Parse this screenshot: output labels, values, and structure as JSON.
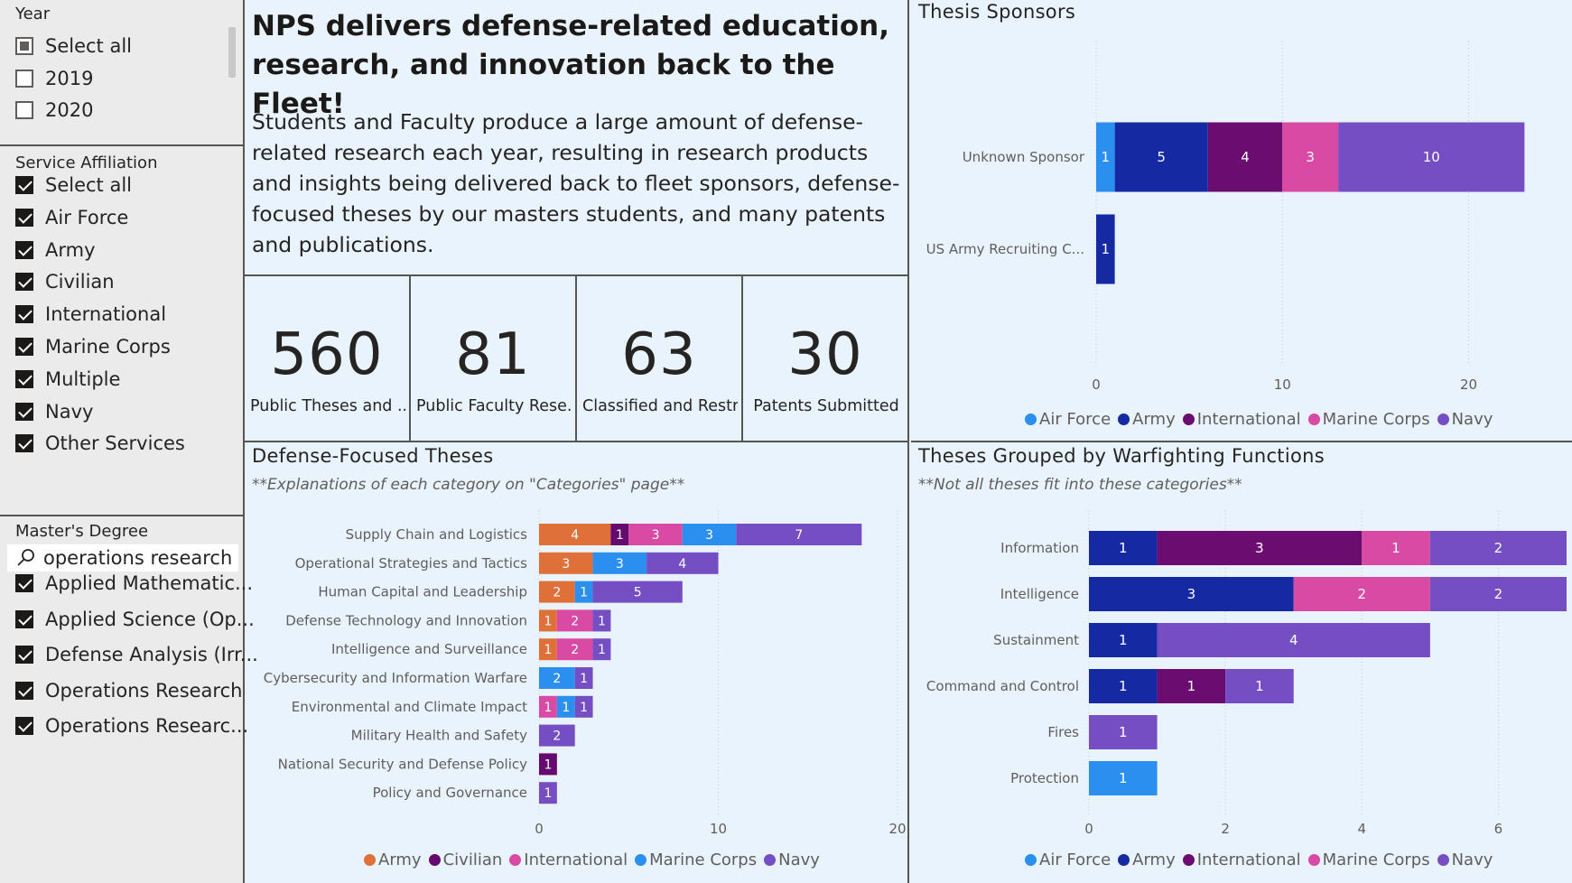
{
  "sidebar": {
    "year": {
      "title": "Year",
      "items": [
        {
          "label": "Select all",
          "state": "partial"
        },
        {
          "label": "2019",
          "state": "unchecked"
        },
        {
          "label": "2020",
          "state": "unchecked"
        }
      ]
    },
    "service": {
      "title": "Service Affiliation",
      "items": [
        {
          "label": "Select all",
          "state": "checked"
        },
        {
          "label": "Air Force",
          "state": "checked"
        },
        {
          "label": "Army",
          "state": "checked"
        },
        {
          "label": "Civilian",
          "state": "checked"
        },
        {
          "label": "International",
          "state": "checked"
        },
        {
          "label": "Marine Corps",
          "state": "checked"
        },
        {
          "label": "Multiple",
          "state": "checked"
        },
        {
          "label": "Navy",
          "state": "checked"
        },
        {
          "label": "Other Services",
          "state": "checked"
        }
      ]
    },
    "degree": {
      "title": "Master's Degree",
      "search_value": "operations research",
      "items": [
        {
          "label": "Applied Mathematic...",
          "state": "checked"
        },
        {
          "label": "Applied Science (Op...",
          "state": "checked"
        },
        {
          "label": "Defense Analysis (Irr...",
          "state": "checked"
        },
        {
          "label": "Operations Research",
          "state": "checked"
        },
        {
          "label": "Operations Researc...",
          "state": "checked"
        }
      ]
    }
  },
  "headline": {
    "title": "NPS delivers defense-related education, research, and innovation back to the Fleet!",
    "body": "Students and Faculty produce a large amount of defense-related research each year, resulting in research products and insights being delivered back to fleet sponsors, defense-focused theses by our masters students, and many patents and publications."
  },
  "kpis": [
    {
      "value": "560",
      "label": "Public Theses and ..."
    },
    {
      "value": "81",
      "label": "Public Faculty Rese..."
    },
    {
      "value": "63",
      "label": "Classified and Restr..."
    },
    {
      "value": "30",
      "label": "Patents Submitted"
    }
  ],
  "colors": {
    "Air Force": "#2b8ff0",
    "Army": "#1529a3",
    "Army_orange": "#e0703a",
    "Civilian": "#650a6e",
    "International": "#6b0d70",
    "Marine Corps": "#d84aa3",
    "Marine Corps_blue": "#2b8ff0",
    "International_pink": "#d84aa3",
    "Navy": "#744ec2"
  },
  "panels": {
    "sponsors": {
      "title": "Thesis Sponsors"
    },
    "defense": {
      "title": "Defense-Focused Theses",
      "subtitle": "**Explanations of each category on \"Categories\" page**"
    },
    "warfighting": {
      "title": "Theses Grouped by Warfighting Functions",
      "subtitle": "**Not all theses fit into these categories**"
    }
  },
  "chart_data": [
    {
      "id": "sponsors",
      "type": "bar",
      "orientation": "horizontal",
      "stacked": true,
      "title": "Thesis Sponsors",
      "categories": [
        "Unknown Sponsor",
        "US Army Recruiting C..."
      ],
      "series": [
        {
          "name": "Air Force",
          "color": "#2b8ff0",
          "values": [
            1,
            null
          ]
        },
        {
          "name": "Army",
          "color": "#1529a3",
          "values": [
            5,
            1
          ]
        },
        {
          "name": "International",
          "color": "#6b0d70",
          "values": [
            4,
            null
          ]
        },
        {
          "name": "Marine Corps",
          "color": "#d84aa3",
          "values": [
            3,
            null
          ]
        },
        {
          "name": "Navy",
          "color": "#744ec2",
          "values": [
            10,
            null
          ]
        }
      ],
      "xlim": [
        0,
        24
      ],
      "xticks": [
        0,
        10,
        20
      ],
      "grid": true,
      "legend": "bottom"
    },
    {
      "id": "defense",
      "type": "bar",
      "orientation": "horizontal",
      "stacked": true,
      "title": "Defense-Focused Theses",
      "subtitle": "**Explanations of each category on \"Categories\" page**",
      "categories": [
        "Supply Chain and Logistics",
        "Operational Strategies and Tactics",
        "Human Capital and Leadership",
        "Defense Technology and Innovation",
        "Intelligence and Surveillance",
        "Cybersecurity and Information Warfare",
        "Environmental and Climate Impact",
        "Military Health and Safety",
        "National Security and Defense Policy",
        "Policy and Governance"
      ],
      "series": [
        {
          "name": "Army",
          "color": "#e0703a",
          "values": [
            4,
            3,
            2,
            1,
            1,
            null,
            null,
            null,
            null,
            null
          ]
        },
        {
          "name": "Civilian",
          "color": "#650a6e",
          "values": [
            1,
            null,
            null,
            null,
            null,
            null,
            null,
            null,
            1,
            null
          ]
        },
        {
          "name": "International",
          "color": "#d84aa3",
          "values": [
            3,
            null,
            null,
            2,
            2,
            null,
            1,
            null,
            null,
            null
          ]
        },
        {
          "name": "Marine Corps",
          "color": "#2b8ff0",
          "values": [
            3,
            3,
            1,
            null,
            null,
            2,
            1,
            null,
            null,
            null
          ]
        },
        {
          "name": "Navy",
          "color": "#744ec2",
          "values": [
            7,
            4,
            5,
            1,
            1,
            1,
            1,
            2,
            null,
            1
          ]
        }
      ],
      "xlim": [
        0,
        20
      ],
      "xticks": [
        0,
        10,
        20
      ],
      "grid": true,
      "legend": "bottom"
    },
    {
      "id": "warfighting",
      "type": "bar",
      "orientation": "horizontal",
      "stacked": true,
      "title": "Theses Grouped by Warfighting Functions",
      "subtitle": "**Not all theses fit into these categories**",
      "categories": [
        "Information",
        "Intelligence",
        "Sustainment",
        "Command and Control",
        "Fires",
        "Protection"
      ],
      "series": [
        {
          "name": "Air Force",
          "color": "#2b8ff0",
          "values": [
            null,
            null,
            null,
            null,
            null,
            1
          ]
        },
        {
          "name": "Army",
          "color": "#1529a3",
          "values": [
            1,
            3,
            1,
            1,
            null,
            null
          ]
        },
        {
          "name": "International",
          "color": "#6b0d70",
          "values": [
            3,
            null,
            null,
            1,
            null,
            null
          ]
        },
        {
          "name": "Marine Corps",
          "color": "#d84aa3",
          "values": [
            1,
            2,
            null,
            null,
            null,
            null
          ]
        },
        {
          "name": "Navy",
          "color": "#744ec2",
          "values": [
            2,
            2,
            4,
            1,
            1,
            null
          ]
        }
      ],
      "xlim": [
        0,
        7
      ],
      "xticks": [
        0,
        2,
        4,
        6
      ],
      "grid": true,
      "legend": "bottom"
    }
  ]
}
